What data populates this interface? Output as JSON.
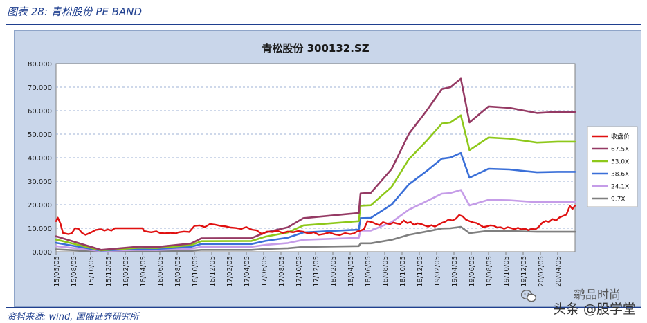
{
  "figure": {
    "title": "图表 28:  青松股份 PE BAND",
    "source": "资料来源:  wind,  国盛证券研究所"
  },
  "watermark": {
    "line1": "鹟品时尚",
    "line2": "头条 @股学堂"
  },
  "colors": {
    "close": "#e01010",
    "pe675": "#953a64",
    "pe530": "#8ec81a",
    "pe386": "#3a6fd8",
    "pe241": "#c59ce8",
    "pe97": "#7f7f7f",
    "plot_bg": "#ffffff",
    "frame_bg": "#c9d6ea"
  },
  "chart_data": {
    "type": "line",
    "title": "青松股份 300132.SZ",
    "ylim": [
      0,
      80
    ],
    "y_ticks": [
      "0.000",
      "10.000",
      "20.000",
      "30.000",
      "40.000",
      "50.000",
      "60.000",
      "70.000",
      "80.000"
    ],
    "x_labels": [
      "15/05/05",
      "15/08/05",
      "15/10/05",
      "15/12/05",
      "16/02/05",
      "16/04/05",
      "16/06/05",
      "16/08/05",
      "16/10/05",
      "16/12/05",
      "17/02/05",
      "17/04/05",
      "17/06/05",
      "17/08/05",
      "17/10/05",
      "17/12/05",
      "18/02/05",
      "18/04/05",
      "18/06/05",
      "18/08/05",
      "18/10/05",
      "18/12/05",
      "19/02/05",
      "19/04/05",
      "19/06/05",
      "19/08/05",
      "19/10/05",
      "19/12/05",
      "20/02/05",
      "20/04/05"
    ],
    "x_range": [
      0,
      30
    ],
    "grid": "horizontal dashed",
    "legend_position": "right",
    "series": [
      {
        "name": "收盘价",
        "key": "close",
        "points": [
          [
            0,
            13
          ],
          [
            0.1,
            14.5
          ],
          [
            0.25,
            12
          ],
          [
            0.4,
            8
          ],
          [
            0.7,
            7.5
          ],
          [
            0.9,
            7.8
          ],
          [
            1.1,
            10
          ],
          [
            1.3,
            9.8
          ],
          [
            1.5,
            8
          ],
          [
            1.7,
            7.2
          ],
          [
            1.9,
            7.8
          ],
          [
            2.1,
            8.5
          ],
          [
            2.3,
            9.3
          ],
          [
            2.6,
            9.6
          ],
          [
            2.8,
            9
          ],
          [
            3.0,
            9.5
          ],
          [
            3.2,
            9
          ],
          [
            3.4,
            10
          ],
          [
            3.6,
            10
          ],
          [
            3.8,
            10
          ],
          [
            4.0,
            10
          ],
          [
            4.4,
            10
          ],
          [
            4.8,
            10
          ],
          [
            5.0,
            10
          ],
          [
            5.1,
            8.8
          ],
          [
            5.3,
            8.5
          ],
          [
            5.5,
            8.3
          ],
          [
            5.8,
            8.7
          ],
          [
            6.0,
            8
          ],
          [
            6.3,
            7.8
          ],
          [
            6.6,
            8.1
          ],
          [
            6.9,
            7.8
          ],
          [
            7.1,
            8.3
          ],
          [
            7.4,
            8.6
          ],
          [
            7.7,
            8.4
          ],
          [
            8.0,
            11
          ],
          [
            8.3,
            11.2
          ],
          [
            8.6,
            10.5
          ],
          [
            8.9,
            11.8
          ],
          [
            9.2,
            11.5
          ],
          [
            9.5,
            11
          ],
          [
            9.8,
            10.8
          ],
          [
            10.1,
            10.3
          ],
          [
            10.4,
            10.1
          ],
          [
            10.7,
            9.7
          ],
          [
            11.0,
            10.5
          ],
          [
            11.3,
            9.4
          ],
          [
            11.6,
            9.1
          ],
          [
            11.9,
            7.5
          ],
          [
            12.2,
            8.6
          ],
          [
            12.5,
            8.4
          ],
          [
            12.8,
            8.9
          ],
          [
            13.1,
            8
          ],
          [
            13.4,
            8.6
          ],
          [
            13.7,
            8.3
          ],
          [
            14.0,
            8.8
          ],
          [
            14.3,
            8.5
          ],
          [
            14.6,
            7.7
          ],
          [
            14.9,
            8.3
          ],
          [
            15.2,
            7.2
          ],
          [
            15.5,
            7.6
          ],
          [
            15.8,
            8.2
          ],
          [
            16.1,
            7.4
          ],
          [
            16.4,
            7.1
          ],
          [
            16.7,
            7.9
          ],
          [
            17.0,
            7.5
          ],
          [
            17.2,
            7.8
          ],
          [
            17.4,
            8.6
          ],
          [
            17.6,
            9
          ],
          [
            17.8,
            9.6
          ],
          [
            18.0,
            13
          ],
          [
            18.3,
            12.5
          ],
          [
            18.5,
            11.8
          ],
          [
            18.7,
            11.3
          ],
          [
            18.9,
            12.6
          ],
          [
            19.1,
            12.1
          ],
          [
            19.3,
            11.7
          ],
          [
            19.5,
            12.4
          ],
          [
            19.7,
            12
          ],
          [
            19.9,
            11.8
          ],
          [
            20.1,
            13.3
          ],
          [
            20.3,
            12.2
          ],
          [
            20.5,
            12.6
          ],
          [
            20.7,
            11.4
          ],
          [
            20.9,
            12.1
          ],
          [
            21.1,
            11.8
          ],
          [
            21.3,
            11.2
          ],
          [
            21.5,
            10.7
          ],
          [
            21.7,
            11.3
          ],
          [
            21.9,
            10.7
          ],
          [
            22.1,
            11.5
          ],
          [
            22.3,
            12.3
          ],
          [
            22.5,
            12.8
          ],
          [
            22.7,
            13.7
          ],
          [
            22.9,
            13.3
          ],
          [
            23.1,
            14
          ],
          [
            23.3,
            15.6
          ],
          [
            23.5,
            15.1
          ],
          [
            23.7,
            13.6
          ],
          [
            23.9,
            13
          ],
          [
            24.1,
            12.5
          ],
          [
            24.3,
            12.2
          ],
          [
            24.5,
            11.4
          ],
          [
            24.7,
            10.5
          ],
          [
            24.9,
            10.8
          ],
          [
            25.1,
            11.2
          ],
          [
            25.3,
            11.1
          ],
          [
            25.5,
            10.3
          ],
          [
            25.7,
            10.4
          ],
          [
            25.9,
            9.8
          ],
          [
            26.1,
            10.4
          ],
          [
            26.3,
            10.1
          ],
          [
            26.5,
            9.6
          ],
          [
            26.7,
            10.2
          ],
          [
            26.9,
            9.5
          ],
          [
            27.1,
            9.8
          ],
          [
            27.3,
            9.2
          ],
          [
            27.5,
            9.8
          ],
          [
            27.7,
            9.5
          ],
          [
            27.9,
            10.6
          ],
          [
            28.1,
            12.3
          ],
          [
            28.3,
            13.1
          ],
          [
            28.5,
            12.7
          ],
          [
            28.7,
            13.9
          ],
          [
            28.9,
            13.3
          ],
          [
            29.1,
            14.6
          ],
          [
            29.3,
            15.2
          ],
          [
            29.5,
            15.8
          ],
          [
            29.7,
            19.5
          ],
          [
            29.85,
            18.2
          ],
          [
            30,
            19.6
          ]
        ]
      },
      {
        "name": "67.5X",
        "key": "pe675",
        "points": [
          [
            0,
            6.6
          ],
          [
            2.6,
            0.8
          ],
          [
            4.8,
            2.2
          ],
          [
            5.8,
            2
          ],
          [
            7.8,
            3.5
          ],
          [
            8.4,
            5.7
          ],
          [
            11.3,
            5.8
          ],
          [
            12.1,
            8.2
          ],
          [
            13.4,
            10.4
          ],
          [
            14.3,
            14.3
          ],
          [
            17.5,
            16.5
          ],
          [
            17.6,
            24.8
          ],
          [
            18.2,
            25.1
          ],
          [
            19.4,
            35.2
          ],
          [
            20.4,
            50.2
          ],
          [
            21.4,
            59.8
          ],
          [
            22.3,
            69.2
          ],
          [
            22.8,
            70
          ],
          [
            23.4,
            73.6
          ],
          [
            23.9,
            55
          ],
          [
            25.0,
            61.8
          ],
          [
            26.2,
            61.2
          ],
          [
            27.8,
            59
          ],
          [
            29,
            59.5
          ],
          [
            30,
            59.5
          ]
        ]
      },
      {
        "name": "53.0X",
        "key": "pe530",
        "points": [
          [
            0,
            5.2
          ],
          [
            2.6,
            0.6
          ],
          [
            4.8,
            1.7
          ],
          [
            5.8,
            1.6
          ],
          [
            7.8,
            2.8
          ],
          [
            8.4,
            4.5
          ],
          [
            11.3,
            4.6
          ],
          [
            12.1,
            6.4
          ],
          [
            13.4,
            8.2
          ],
          [
            14.3,
            11.2
          ],
          [
            17.5,
            13
          ],
          [
            17.6,
            19.6
          ],
          [
            18.2,
            19.8
          ],
          [
            19.4,
            27.6
          ],
          [
            20.4,
            39.4
          ],
          [
            21.4,
            47
          ],
          [
            22.3,
            54.5
          ],
          [
            22.8,
            55
          ],
          [
            23.4,
            58
          ],
          [
            23.9,
            43.2
          ],
          [
            25.0,
            48.6
          ],
          [
            26.2,
            48.1
          ],
          [
            27.8,
            46.4
          ],
          [
            29,
            46.8
          ],
          [
            30,
            46.8
          ]
        ]
      },
      {
        "name": "38.6X",
        "key": "pe386",
        "points": [
          [
            0,
            3.8
          ],
          [
            2.6,
            0.5
          ],
          [
            4.8,
            1.3
          ],
          [
            5.8,
            1.2
          ],
          [
            7.8,
            2.1
          ],
          [
            8.4,
            3.3
          ],
          [
            11.3,
            3.3
          ],
          [
            12.1,
            4.6
          ],
          [
            13.4,
            6
          ],
          [
            14.3,
            8.2
          ],
          [
            17.5,
            9.4
          ],
          [
            17.6,
            14.3
          ],
          [
            18.2,
            14.4
          ],
          [
            19.4,
            20.1
          ],
          [
            20.4,
            28.7
          ],
          [
            21.4,
            34.2
          ],
          [
            22.3,
            39.6
          ],
          [
            22.8,
            40.1
          ],
          [
            23.4,
            42
          ],
          [
            23.9,
            31.5
          ],
          [
            25.0,
            35.3
          ],
          [
            26.2,
            35
          ],
          [
            27.8,
            33.8
          ],
          [
            29,
            34
          ],
          [
            30,
            34
          ]
        ]
      },
      {
        "name": "24.1X",
        "key": "pe241",
        "points": [
          [
            0,
            2.4
          ],
          [
            2.6,
            0.3
          ],
          [
            4.8,
            0.8
          ],
          [
            5.8,
            0.7
          ],
          [
            7.8,
            1.3
          ],
          [
            8.4,
            2.1
          ],
          [
            11.3,
            2.1
          ],
          [
            12.1,
            2.9
          ],
          [
            13.4,
            3.7
          ],
          [
            14.3,
            5.1
          ],
          [
            17.5,
            5.9
          ],
          [
            17.6,
            9
          ],
          [
            18.2,
            9
          ],
          [
            19.4,
            12.6
          ],
          [
            20.4,
            17.9
          ],
          [
            21.4,
            21.4
          ],
          [
            22.3,
            24.7
          ],
          [
            22.8,
            25
          ],
          [
            23.4,
            26.3
          ],
          [
            23.9,
            19.7
          ],
          [
            25.0,
            22.1
          ],
          [
            26.2,
            21.9
          ],
          [
            27.8,
            21.1
          ],
          [
            29,
            21.2
          ],
          [
            30,
            21.2
          ]
        ]
      },
      {
        "name": "9.7X",
        "key": "pe97",
        "points": [
          [
            0,
            1
          ],
          [
            2.6,
            0.1
          ],
          [
            4.8,
            0.3
          ],
          [
            5.8,
            0.3
          ],
          [
            7.8,
            0.5
          ],
          [
            8.4,
            0.8
          ],
          [
            11.3,
            0.8
          ],
          [
            12.1,
            1.2
          ],
          [
            13.4,
            1.5
          ],
          [
            14.3,
            2.1
          ],
          [
            17.5,
            2.4
          ],
          [
            17.6,
            3.6
          ],
          [
            18.2,
            3.6
          ],
          [
            19.4,
            5.1
          ],
          [
            20.4,
            7.2
          ],
          [
            21.4,
            8.6
          ],
          [
            22.3,
            9.9
          ],
          [
            22.8,
            10
          ],
          [
            23.4,
            10.6
          ],
          [
            23.9,
            7.9
          ],
          [
            25.0,
            8.9
          ],
          [
            26.2,
            8.8
          ],
          [
            27.8,
            8.5
          ],
          [
            29,
            8.5
          ],
          [
            30,
            8.5
          ]
        ]
      }
    ]
  }
}
